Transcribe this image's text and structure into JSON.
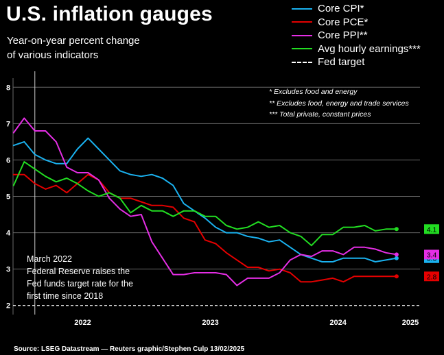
{
  "title": "U.S. inflation gauges",
  "subtitle_lines": [
    "Year-on-year percent change",
    "of various indicators"
  ],
  "footnotes": [
    "* Excludes food and energy",
    "** Excludes food, energy and trade services",
    "*** Total private, constant prices"
  ],
  "annotation_lines": [
    "March 2022",
    "Federal Reserve raises the",
    "Fed funds target rate for the",
    "first time since 2018"
  ],
  "source": "Source: LSEG Datastream — Reuters graphic/Stephen Culp 13/02/2025",
  "legend": [
    {
      "name": "Core CPI*",
      "color": "#1ab2f0",
      "style": "solid"
    },
    {
      "name": "Core PCE*",
      "color": "#e50000",
      "style": "solid"
    },
    {
      "name": "Core PPI**",
      "color": "#e52ee5",
      "style": "solid"
    },
    {
      "name": "Avg hourly earnings***",
      "color": "#22dd22",
      "style": "solid"
    },
    {
      "name": "Fed target",
      "color": "#ffffff",
      "style": "dashed"
    }
  ],
  "chart_data": {
    "type": "line",
    "title": "U.S. inflation gauges",
    "x_unit": "months since Jan 2022",
    "xlim": [
      -1.05,
      37.2
    ],
    "ylim": [
      1.75,
      8.25
    ],
    "y_ticks": [
      2,
      3,
      4,
      5,
      6,
      7,
      8
    ],
    "x_ticks": [
      {
        "label": "2022",
        "x": 5.5
      },
      {
        "label": "2023",
        "x": 17.5
      },
      {
        "label": "2024",
        "x": 29.5
      },
      {
        "label": "2025",
        "x": 36.3
      }
    ],
    "fed_target": 2.0,
    "march_2022_marker": 1.0,
    "grid": true,
    "series": [
      {
        "name": "Core CPI*",
        "color": "#1ab2f0",
        "x": [
          -1,
          0,
          1,
          2,
          3,
          4,
          5,
          6,
          7,
          8,
          9,
          10,
          11,
          12,
          13,
          14,
          15,
          16,
          17,
          18,
          19,
          20,
          21,
          22,
          23,
          24,
          25,
          26,
          27,
          28,
          29,
          30,
          31,
          32,
          33,
          34,
          35
        ],
        "y": [
          6.4,
          6.5,
          6.15,
          6.0,
          5.9,
          5.9,
          6.3,
          6.6,
          6.3,
          6.0,
          5.7,
          5.6,
          5.55,
          5.6,
          5.5,
          5.3,
          4.8,
          4.6,
          4.4,
          4.15,
          4.0,
          4.0,
          3.9,
          3.85,
          3.75,
          3.8,
          3.6,
          3.4,
          3.3,
          3.2,
          3.2,
          3.3,
          3.3,
          3.3,
          3.2,
          3.25,
          3.3
        ],
        "end_label": "3.3"
      },
      {
        "name": "Core PCE*",
        "color": "#e50000",
        "x": [
          -1,
          0,
          1,
          2,
          3,
          4,
          5,
          6,
          7,
          8,
          9,
          10,
          11,
          12,
          13,
          14,
          15,
          16,
          17,
          18,
          19,
          20,
          21,
          22,
          23,
          24,
          25,
          26,
          27,
          28,
          29,
          30,
          31,
          32,
          33,
          34,
          35
        ],
        "y": [
          5.6,
          5.6,
          5.35,
          5.2,
          5.3,
          5.1,
          5.35,
          5.6,
          5.45,
          5.1,
          4.95,
          4.95,
          4.85,
          4.75,
          4.75,
          4.7,
          4.4,
          4.3,
          3.8,
          3.7,
          3.45,
          3.25,
          3.05,
          3.05,
          2.95,
          3.0,
          2.9,
          2.65,
          2.65,
          2.7,
          2.75,
          2.65,
          2.8,
          2.8,
          2.8,
          2.8,
          2.8
        ],
        "end_label": "2.8"
      },
      {
        "name": "Core PPI**",
        "color": "#e52ee5",
        "x": [
          -1,
          0,
          1,
          2,
          3,
          4,
          5,
          6,
          7,
          8,
          9,
          10,
          11,
          12,
          13,
          14,
          15,
          16,
          17,
          18,
          19,
          20,
          21,
          22,
          23,
          24,
          25,
          26,
          27,
          28,
          29,
          30,
          31,
          32,
          33,
          34,
          35
        ],
        "y": [
          6.75,
          7.15,
          6.8,
          6.8,
          6.5,
          5.8,
          5.65,
          5.65,
          5.45,
          4.95,
          4.65,
          4.45,
          4.5,
          3.75,
          3.3,
          2.85,
          2.85,
          2.9,
          2.9,
          2.9,
          2.85,
          2.55,
          2.75,
          2.75,
          2.75,
          2.9,
          3.25,
          3.4,
          3.35,
          3.5,
          3.5,
          3.4,
          3.6,
          3.6,
          3.55,
          3.45,
          3.4
        ],
        "end_label": "3.4"
      },
      {
        "name": "Avg hourly earnings***",
        "color": "#22dd22",
        "x": [
          -1,
          0,
          1,
          2,
          3,
          4,
          5,
          6,
          7,
          8,
          9,
          10,
          11,
          12,
          13,
          14,
          15,
          16,
          17,
          18,
          19,
          20,
          21,
          22,
          23,
          24,
          25,
          26,
          27,
          28,
          29,
          30,
          31,
          32,
          33,
          34,
          35
        ],
        "y": [
          5.3,
          5.95,
          5.75,
          5.55,
          5.4,
          5.5,
          5.35,
          5.15,
          5.0,
          5.1,
          4.95,
          4.55,
          4.75,
          4.6,
          4.6,
          4.45,
          4.6,
          4.6,
          4.45,
          4.45,
          4.2,
          4.1,
          4.15,
          4.3,
          4.15,
          4.2,
          4.0,
          3.9,
          3.65,
          3.95,
          3.95,
          4.15,
          4.15,
          4.2,
          4.05,
          4.1,
          4.1
        ],
        "end_label": "4.1"
      }
    ]
  }
}
